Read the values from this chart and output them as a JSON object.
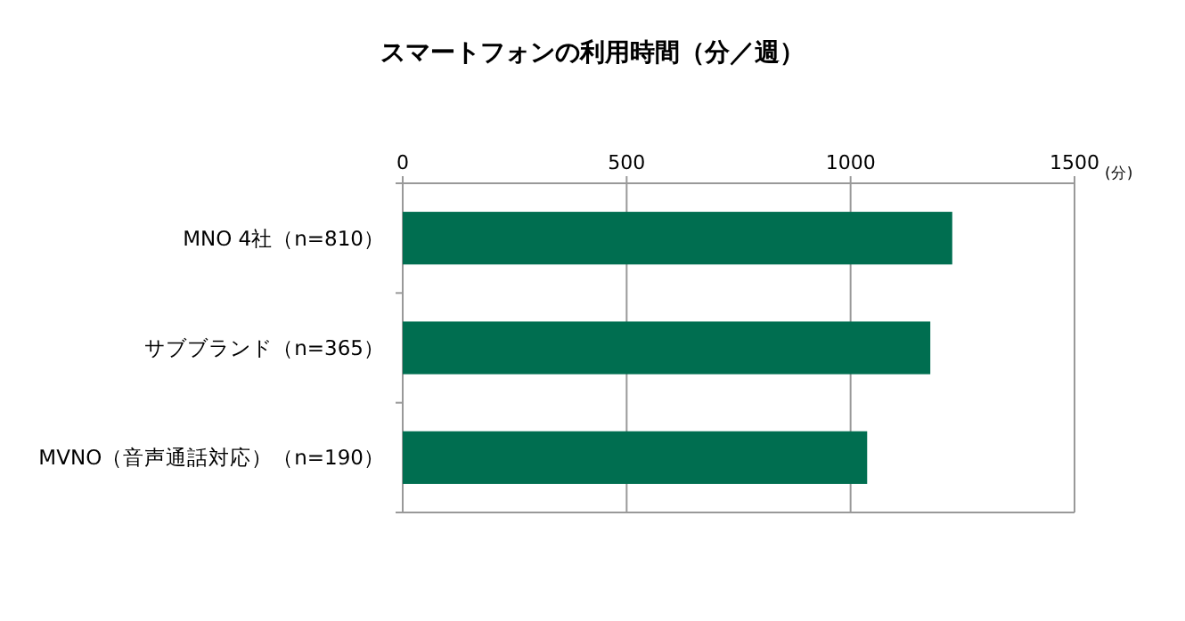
{
  "chart_data": {
    "type": "bar",
    "orientation": "horizontal",
    "title": "スマートフォンの利用時間（分／週）",
    "xlabel": "(分)",
    "categories": [
      "MNO 4社（n=810）",
      "サブブランド（n=365）",
      "MVNO（音声通話対応）（n=190）"
    ],
    "values": [
      1227,
      1178,
      1037
    ],
    "color": "#006e50",
    "xlim": [
      0,
      1500
    ],
    "xticks": [
      0,
      500,
      1000,
      1500
    ],
    "grid": "x"
  }
}
